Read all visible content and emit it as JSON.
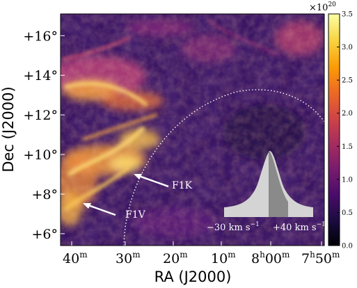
{
  "chart_data": {
    "type": "heatmap",
    "title": "",
    "xlabel": "RA (J2000)",
    "ylabel": "Dec (J2000)",
    "x_ticks": [
      "40",
      "30",
      "20",
      "10",
      "8",
      "7"
    ],
    "x_tick_superscripts": [
      "m",
      "m",
      "m",
      "m",
      "h",
      "h"
    ],
    "x_tick_suffix": [
      "",
      "",
      "",
      "",
      "00",
      "50"
    ],
    "x_tick_suffix_superscripts": [
      "",
      "",
      "",
      "",
      "m",
      "m"
    ],
    "y_ticks": [
      "+6°",
      "+8°",
      "+10°",
      "+12°",
      "+14°",
      "+16°"
    ],
    "y_tick_values": [
      6,
      8,
      10,
      12,
      14,
      16
    ],
    "ylim": [
      5.4,
      17.1
    ],
    "x_tick_values": [
      8.6667,
      8.5,
      8.3333,
      8.1667,
      8.0,
      7.8333
    ],
    "xlim": [
      8.72,
      7.81
    ],
    "colorbar": {
      "multiplier": "×10",
      "multiplier_exponent": "20",
      "ticks": [
        "0.0",
        "0.5",
        "1.0",
        "1.5",
        "2.0",
        "2.5",
        "3.0",
        "3.5"
      ],
      "tick_values": [
        0,
        0.5,
        1.0,
        1.5,
        2.0,
        2.5,
        3.0,
        3.5
      ],
      "range": [
        0,
        3.5
      ],
      "colormap": "inferno",
      "stops": [
        "#000004",
        "#1b0c41",
        "#4a0c6b",
        "#781c6d",
        "#a52c60",
        "#cf4446",
        "#ed6925",
        "#fb9b06",
        "#f7d13d",
        "#fcffa4"
      ]
    },
    "annotations": [
      {
        "label": "F1K"
      },
      {
        "label": "F1V"
      }
    ],
    "inset": {
      "left_label": "−30 km s",
      "left_exponent": "−1",
      "right_label": "+40 km s",
      "right_exponent": "−1"
    },
    "circle_style": "dotted white arc"
  },
  "colors": {
    "background": "#3a1563",
    "bright_filament": "#f6b53a",
    "white": "#ffffff"
  }
}
